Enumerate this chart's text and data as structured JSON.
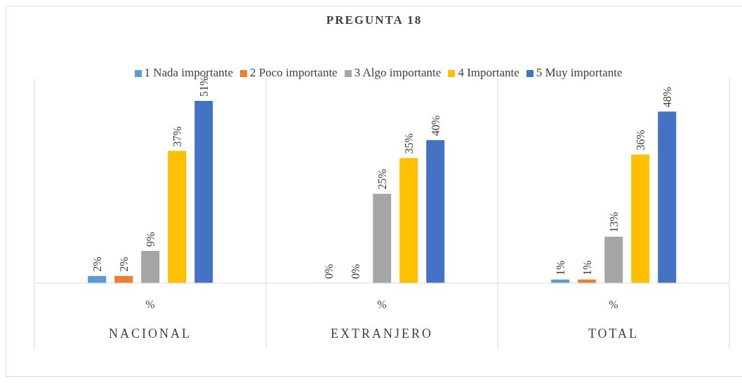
{
  "chart_data": {
    "type": "bar",
    "title": "PREGUNTA 18",
    "categories": [
      "NACIONAL",
      "EXTRANJERO",
      "TOTAL"
    ],
    "annotations": [
      "%",
      "%",
      "%"
    ],
    "series": [
      {
        "name": "1 Nada importante",
        "color": "#5b9bd5",
        "values": [
          2,
          0,
          1
        ],
        "value_labels": [
          "2%",
          "0%",
          "1%"
        ]
      },
      {
        "name": "2 Poco importante",
        "color": "#ed7d31",
        "values": [
          2,
          0,
          1
        ],
        "value_labels": [
          "2%",
          "0%",
          "1%"
        ]
      },
      {
        "name": "3 Algo importante",
        "color": "#a5a5a5",
        "values": [
          9,
          25,
          13
        ],
        "value_labels": [
          "9%",
          "25%",
          "13%"
        ]
      },
      {
        "name": "4 Importante",
        "color": "#ffc000",
        "values": [
          37,
          35,
          36
        ],
        "value_labels": [
          "37%",
          "35%",
          "36%"
        ]
      },
      {
        "name": "5 Muy importante",
        "color": "#4472c4",
        "values": [
          51,
          40,
          48
        ],
        "value_labels": [
          "51%",
          "40%",
          "48%"
        ]
      }
    ],
    "tick_labels": "x",
    "grid": false,
    "legend": "top"
  }
}
